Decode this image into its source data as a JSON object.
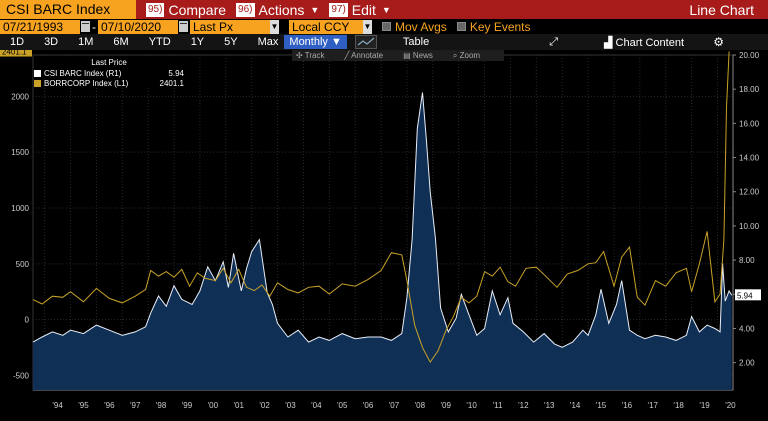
{
  "titlebar": {
    "ticker": "CSI BARC Index",
    "compare_num": "95)",
    "compare_label": "Compare",
    "actions_num": "96)",
    "actions_label": "Actions",
    "edit_num": "97)",
    "edit_label": "Edit",
    "chart_type": "Line Chart"
  },
  "bar2": {
    "start_date": "07/21/1993",
    "end_date": "07/10/2020",
    "field": "Last Px",
    "currency": "Local CCY",
    "mov_avgs": "Mov Avgs",
    "key_events": "Key Events"
  },
  "bar3": {
    "periods": [
      "1D",
      "3D",
      "1M",
      "6M",
      "YTD",
      "1Y",
      "5Y",
      "Max"
    ],
    "frequency": "Monthly",
    "table": "Table",
    "chart_content": "Chart Content"
  },
  "tools": {
    "track": "Track",
    "annotate": "Annotate",
    "news": "News",
    "zoom": "Zoom"
  },
  "legend": {
    "header": "Last Price",
    "series1_name": "CSI BARC Index  (R1)",
    "series1_value": "5.94",
    "series2_name": "BORRCORP Index  (L1)",
    "series2_value": "2401.1"
  },
  "colors": {
    "area": "#11325a",
    "area_line": "#e8eef8",
    "gold": "#c9a227",
    "bg": "#000000"
  },
  "chart_data": {
    "type": "line",
    "title": "",
    "x_ticks": [
      "'94",
      "'95",
      "'96",
      "'97",
      "'98",
      "'99",
      "'00",
      "'01",
      "'02",
      "'03",
      "'04",
      "'05",
      "'06",
      "'07",
      "'08",
      "'09",
      "'10",
      "'11",
      "'12",
      "'13",
      "'14",
      "'15",
      "'16",
      "'17",
      "'18",
      "'19",
      "'20"
    ],
    "left_ticks": [
      2000,
      1500,
      1000,
      500,
      0,
      -500
    ],
    "left_range": [
      -630,
      2370
    ],
    "right_ticks": [
      "20.00",
      "18.00",
      "16.00",
      "14.00",
      "12.00",
      "10.00",
      "8.00",
      "6.00",
      "4.00",
      "2.00"
    ],
    "right_range": [
      0.4,
      20.0
    ],
    "x_range": [
      1993.55,
      2020.6
    ],
    "series": [
      {
        "name": "CSI BARC Index (R1)",
        "axis": "right",
        "style": "area",
        "last": 5.94,
        "x": [
          1993.55,
          1993.9,
          1994.3,
          1994.7,
          1995.0,
          1995.5,
          1996.0,
          1996.5,
          1997.0,
          1997.5,
          1997.9,
          1998.1,
          1998.4,
          1998.7,
          1999.0,
          1999.3,
          1999.7,
          2000.0,
          2000.3,
          2000.6,
          2000.9,
          2001.1,
          2001.3,
          2001.6,
          2001.8,
          2002.0,
          2002.3,
          2002.6,
          2002.8,
          2003.0,
          2003.4,
          2003.8,
          2004.2,
          2004.6,
          2005.0,
          2005.5,
          2006.0,
          2006.5,
          2007.0,
          2007.4,
          2007.8,
          2008.0,
          2008.2,
          2008.4,
          2008.6,
          2008.75,
          2008.9,
          2009.1,
          2009.3,
          2009.6,
          2009.9,
          2010.1,
          2010.4,
          2010.7,
          2011.0,
          2011.3,
          2011.6,
          2011.9,
          2012.1,
          2012.5,
          2012.9,
          2013.3,
          2013.7,
          2014.0,
          2014.4,
          2014.8,
          2015.0,
          2015.3,
          2015.5,
          2015.8,
          2016.1,
          2016.3,
          2016.6,
          2016.9,
          2017.2,
          2017.6,
          2018.0,
          2018.4,
          2018.8,
          2019.0,
          2019.3,
          2019.6,
          2019.9,
          2020.1,
          2020.2,
          2020.3,
          2020.45,
          2020.55
        ],
        "y": [
          3.2,
          3.5,
          3.8,
          3.6,
          3.9,
          3.7,
          4.2,
          3.9,
          3.6,
          3.8,
          4.1,
          4.9,
          5.9,
          5.3,
          6.5,
          5.7,
          5.4,
          6.2,
          7.6,
          6.8,
          7.9,
          6.4,
          8.4,
          6.2,
          7.5,
          8.5,
          9.2,
          6.1,
          5.4,
          4.3,
          3.5,
          3.9,
          3.2,
          3.5,
          3.3,
          3.7,
          3.4,
          3.5,
          3.5,
          3.3,
          3.7,
          5.8,
          9.2,
          15.7,
          17.8,
          15.1,
          12.0,
          9.3,
          5.2,
          3.8,
          4.6,
          6.0,
          4.8,
          3.6,
          4.0,
          6.2,
          4.8,
          5.8,
          4.3,
          3.8,
          3.2,
          3.7,
          3.1,
          2.9,
          3.2,
          3.9,
          3.6,
          4.8,
          6.3,
          4.3,
          5.4,
          6.8,
          3.9,
          3.6,
          3.4,
          3.6,
          3.5,
          3.3,
          3.6,
          4.7,
          3.8,
          4.2,
          4.0,
          3.8,
          7.8,
          5.6,
          6.2,
          5.94
        ]
      },
      {
        "name": "BORRCORP Index (L1)",
        "axis": "left",
        "style": "line",
        "last": 2401.1,
        "x": [
          1993.55,
          1993.9,
          1994.3,
          1994.7,
          1995.0,
          1995.5,
          1996.0,
          1996.5,
          1997.0,
          1997.5,
          1997.9,
          1998.1,
          1998.4,
          1998.7,
          1999.0,
          1999.3,
          1999.6,
          1999.9,
          2000.2,
          2000.6,
          2000.9,
          2001.2,
          2001.5,
          2001.8,
          2002.1,
          2002.4,
          2002.7,
          2003.0,
          2003.4,
          2003.8,
          2004.2,
          2004.6,
          2005.0,
          2005.5,
          2006.0,
          2006.5,
          2007.0,
          2007.4,
          2007.8,
          2008.0,
          2008.3,
          2008.6,
          2008.9,
          2009.2,
          2009.5,
          2009.8,
          2010.1,
          2010.4,
          2010.7,
          2011.0,
          2011.3,
          2011.6,
          2011.9,
          2012.2,
          2012.6,
          2013.0,
          2013.4,
          2013.8,
          2014.2,
          2014.6,
          2015.0,
          2015.3,
          2015.6,
          2016.0,
          2016.3,
          2016.6,
          2016.9,
          2017.2,
          2017.6,
          2018.0,
          2018.4,
          2018.8,
          2019.0,
          2019.3,
          2019.6,
          2019.9,
          2020.1,
          2020.25,
          2020.35,
          2020.45
        ],
        "y": [
          180,
          140,
          210,
          200,
          250,
          160,
          280,
          190,
          150,
          210,
          270,
          440,
          390,
          430,
          380,
          450,
          300,
          420,
          370,
          350,
          460,
          330,
          450,
          290,
          260,
          310,
          210,
          330,
          270,
          240,
          290,
          300,
          230,
          320,
          300,
          360,
          440,
          600,
          580,
          350,
          -50,
          -250,
          -380,
          -280,
          -100,
          30,
          200,
          150,
          210,
          430,
          390,
          470,
          340,
          300,
          460,
          470,
          380,
          290,
          410,
          440,
          500,
          510,
          610,
          300,
          560,
          650,
          200,
          130,
          350,
          300,
          420,
          460,
          250,
          500,
          790,
          160,
          230,
          720,
          1900,
          2401
        ]
      }
    ]
  }
}
